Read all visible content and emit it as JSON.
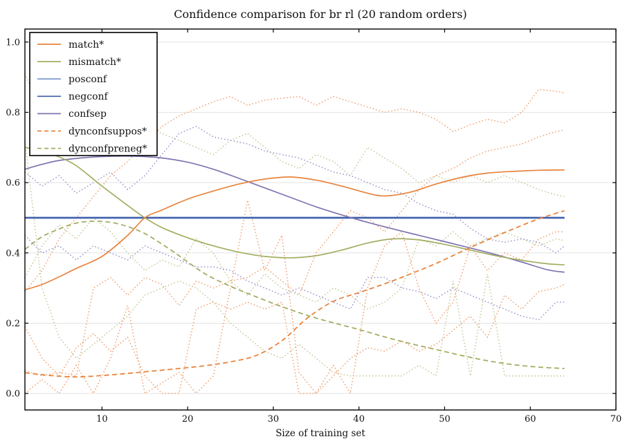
{
  "chart_data": {
    "type": "line",
    "title": "Confidence comparison for br rl (20 random orders)",
    "xlabel": "Size of training set",
    "ylabel": "",
    "xlim": [
      1,
      70
    ],
    "ylim": [
      -0.047,
      1.037
    ],
    "grid": "horizontal",
    "legend_position": "upper left",
    "style": {
      "background": "#ffffff",
      "grid_color": "#e3e3e3",
      "spine_color": "#000000",
      "text_color": "#111111",
      "legend_border": "#000000",
      "legend_fill": "#ffffff"
    },
    "xticks": {
      "values": [
        10,
        20,
        30,
        40,
        50,
        60,
        70
      ],
      "labels": [
        "10",
        "20",
        "30",
        "40",
        "50",
        "60",
        "70"
      ]
    },
    "yticks": {
      "values": [
        0.0,
        0.2,
        0.4,
        0.6,
        0.8,
        1.0
      ],
      "labels": [
        "0.0",
        "0.2",
        "0.4",
        "0.6",
        "0.8",
        "1.0"
      ]
    },
    "legend_order": [
      "match*",
      "mismatch*",
      "posconf",
      "negconf",
      "confsep",
      "dynconfsuppos*",
      "dynconfpreneg*"
    ],
    "series": [
      {
        "name": "run-orange-1",
        "role": "run",
        "color": "#f0a173",
        "dash": "dotted",
        "width": 1.5,
        "smooth": false,
        "x": [
          1,
          3,
          5,
          7,
          9,
          11,
          13,
          15,
          17,
          19,
          21,
          23,
          25,
          27,
          29,
          31,
          33,
          35,
          37,
          39,
          41,
          43,
          45,
          47,
          49,
          51,
          53,
          55,
          57,
          59,
          61,
          63,
          64
        ],
        "y": [
          0.29,
          0.35,
          0.44,
          0.5,
          0.56,
          0.62,
          0.66,
          0.71,
          0.76,
          0.79,
          0.81,
          0.83,
          0.845,
          0.82,
          0.835,
          0.84,
          0.845,
          0.82,
          0.845,
          0.83,
          0.815,
          0.8,
          0.81,
          0.8,
          0.78,
          0.745,
          0.765,
          0.78,
          0.77,
          0.8,
          0.865,
          0.86,
          0.855
        ]
      },
      {
        "name": "run-orange-2",
        "role": "run",
        "color": "#f0a173",
        "dash": "dotted",
        "width": 1.5,
        "smooth": false,
        "x": [
          1,
          3,
          5,
          7,
          9,
          11,
          13,
          15,
          17,
          19,
          21,
          23,
          25,
          27,
          29,
          31,
          33,
          35,
          37,
          39,
          41,
          43,
          45,
          47,
          49,
          51,
          53,
          55,
          57,
          59,
          61,
          63,
          64
        ],
        "y": [
          0.065,
          0.05,
          0.06,
          0.05,
          0.3,
          0.33,
          0.28,
          0.33,
          0.31,
          0.25,
          0.32,
          0.3,
          0.32,
          0.33,
          0.36,
          0.32,
          0.28,
          0.4,
          0.46,
          0.52,
          0.5,
          0.46,
          0.52,
          0.58,
          0.62,
          0.64,
          0.67,
          0.69,
          0.7,
          0.71,
          0.73,
          0.745,
          0.75
        ]
      },
      {
        "name": "run-orange-3",
        "role": "run",
        "color": "#f0a173",
        "dash": "dotted",
        "width": 1.5,
        "smooth": false,
        "x": [
          1,
          3,
          5,
          7,
          9,
          11,
          13,
          15,
          17,
          19,
          21,
          23,
          25,
          27,
          29,
          31,
          33,
          35,
          37,
          39,
          41,
          43,
          45,
          47,
          49,
          51,
          53,
          55,
          57,
          59,
          61,
          63,
          64
        ],
        "y": [
          0.19,
          0.1,
          0.05,
          0.13,
          0.17,
          0.12,
          0.16,
          0.05,
          0.0,
          0.0,
          0.24,
          0.26,
          0.24,
          0.26,
          0.24,
          0.26,
          0.0,
          0.0,
          0.05,
          0.1,
          0.13,
          0.12,
          0.15,
          0.12,
          0.14,
          0.18,
          0.22,
          0.16,
          0.28,
          0.24,
          0.29,
          0.3,
          0.31
        ]
      },
      {
        "name": "run-orange-4",
        "role": "run",
        "color": "#f0a173",
        "dash": "dotted",
        "width": 1.5,
        "smooth": false,
        "x": [
          1,
          3,
          5,
          7,
          9,
          11,
          13,
          15,
          17,
          19,
          21,
          23,
          25,
          27,
          29,
          31,
          33,
          35,
          37,
          39,
          41,
          43,
          45,
          47,
          49,
          51,
          53,
          55,
          57,
          59,
          61,
          63,
          64
        ],
        "y": [
          0.0,
          0.04,
          0.0,
          0.08,
          0.0,
          0.1,
          0.25,
          0.0,
          0.03,
          0.06,
          0.0,
          0.05,
          0.3,
          0.55,
          0.35,
          0.45,
          0.06,
          0.0,
          0.08,
          0.0,
          0.3,
          0.42,
          0.46,
          0.3,
          0.2,
          0.26,
          0.42,
          0.35,
          0.4,
          0.38,
          0.44,
          0.46,
          0.46
        ]
      },
      {
        "name": "run-olive-1",
        "role": "run",
        "color": "#c3c896",
        "dash": "dotted",
        "width": 1.5,
        "smooth": false,
        "x": [
          1,
          3,
          5,
          7,
          9,
          11,
          13,
          15,
          17,
          19,
          21,
          23,
          25,
          27,
          29,
          31,
          33,
          35,
          37,
          39,
          41,
          43,
          45,
          47,
          49,
          51,
          53,
          55,
          57,
          59,
          61,
          63,
          64
        ],
        "y": [
          0.91,
          0.8,
          0.72,
          0.74,
          0.7,
          0.72,
          0.74,
          0.76,
          0.74,
          0.72,
          0.7,
          0.68,
          0.72,
          0.74,
          0.7,
          0.66,
          0.64,
          0.68,
          0.66,
          0.62,
          0.7,
          0.67,
          0.64,
          0.6,
          0.62,
          0.6,
          0.62,
          0.6,
          0.62,
          0.6,
          0.58,
          0.565,
          0.56
        ]
      },
      {
        "name": "run-olive-2",
        "role": "run",
        "color": "#c3c896",
        "dash": "dotted",
        "width": 1.5,
        "smooth": false,
        "x": [
          1,
          3,
          5,
          7,
          9,
          11,
          13,
          15,
          17,
          19,
          21,
          23,
          25,
          27,
          29,
          31,
          33,
          35,
          37,
          39,
          41,
          43,
          45,
          47,
          49,
          51,
          53,
          55,
          57,
          59,
          61,
          63,
          64
        ],
        "y": [
          0.33,
          0.42,
          0.48,
          0.44,
          0.5,
          0.46,
          0.4,
          0.35,
          0.38,
          0.36,
          0.44,
          0.4,
          0.32,
          0.28,
          0.34,
          0.3,
          0.28,
          0.26,
          0.3,
          0.28,
          0.24,
          0.26,
          0.3,
          0.44,
          0.42,
          0.46,
          0.42,
          0.44,
          0.46,
          0.44,
          0.42,
          0.44,
          0.435
        ]
      },
      {
        "name": "run-olive-3",
        "role": "run",
        "color": "#c3c896",
        "dash": "dotted",
        "width": 1.5,
        "smooth": false,
        "x": [
          1,
          3,
          5,
          7,
          9,
          11,
          13,
          15,
          17,
          19,
          21,
          23,
          25,
          27,
          29,
          31,
          33,
          35,
          37,
          39,
          41,
          43,
          45,
          47,
          49,
          51,
          53,
          55,
          57,
          59,
          61,
          63,
          64
        ],
        "y": [
          0.72,
          0.3,
          0.16,
          0.1,
          0.14,
          0.18,
          0.22,
          0.28,
          0.3,
          0.32,
          0.3,
          0.26,
          0.2,
          0.16,
          0.12,
          0.1,
          0.14,
          0.1,
          0.06,
          0.05,
          0.05,
          0.05,
          0.05,
          0.08,
          0.05,
          0.32,
          0.05,
          0.34,
          0.05,
          0.05,
          0.05,
          0.05,
          0.05
        ]
      },
      {
        "name": "run-slate-1",
        "role": "run",
        "color": "#9a95cb",
        "dash": "dotted",
        "width": 1.5,
        "smooth": false,
        "x": [
          1,
          3,
          5,
          7,
          9,
          11,
          13,
          15,
          17,
          19,
          21,
          23,
          25,
          27,
          29,
          31,
          33,
          35,
          37,
          39,
          41,
          43,
          45,
          47,
          49,
          51,
          53,
          55,
          57,
          59,
          61,
          63,
          64
        ],
        "y": [
          0.63,
          0.59,
          0.62,
          0.57,
          0.6,
          0.63,
          0.58,
          0.62,
          0.68,
          0.74,
          0.76,
          0.73,
          0.72,
          0.71,
          0.69,
          0.68,
          0.67,
          0.65,
          0.63,
          0.62,
          0.6,
          0.58,
          0.57,
          0.54,
          0.52,
          0.51,
          0.47,
          0.44,
          0.43,
          0.44,
          0.43,
          0.4,
          0.42
        ]
      },
      {
        "name": "run-slate-2",
        "role": "run",
        "color": "#9a95cb",
        "dash": "dotted",
        "width": 1.5,
        "smooth": false,
        "x": [
          1,
          3,
          5,
          7,
          9,
          11,
          13,
          15,
          17,
          19,
          21,
          23,
          25,
          27,
          29,
          31,
          33,
          35,
          37,
          39,
          41,
          43,
          45,
          47,
          49,
          51,
          53,
          55,
          57,
          59,
          61,
          63,
          64
        ],
        "y": [
          0.45,
          0.4,
          0.42,
          0.38,
          0.42,
          0.4,
          0.38,
          0.42,
          0.4,
          0.38,
          0.36,
          0.36,
          0.35,
          0.32,
          0.3,
          0.28,
          0.3,
          0.28,
          0.26,
          0.24,
          0.33,
          0.33,
          0.3,
          0.29,
          0.27,
          0.3,
          0.28,
          0.26,
          0.24,
          0.22,
          0.21,
          0.26,
          0.26
        ]
      },
      {
        "name": "posconf",
        "role": "main",
        "color": "#7293cb",
        "dash": "solid",
        "width": 3.0,
        "smooth": false,
        "x": [
          1,
          64
        ],
        "y": [
          0.5,
          0.5
        ]
      },
      {
        "name": "negconf",
        "role": "main",
        "color": "#3c5aa6",
        "dash": "solid",
        "width": 1.7,
        "smooth": false,
        "x": [
          1,
          64
        ],
        "y": [
          0.5,
          0.5
        ]
      },
      {
        "name": "run-blue-mid",
        "role": "run",
        "color": "#3c5aa6",
        "dash": "dotted",
        "width": 1.5,
        "smooth": false,
        "x": [
          1,
          64
        ],
        "y": [
          0.5,
          0.5
        ]
      },
      {
        "name": "confsep",
        "role": "main",
        "color": "#7e74b2",
        "dash": "solid",
        "width": 1.7,
        "smooth": true,
        "x": [
          1,
          3,
          5,
          8,
          11,
          14,
          17,
          20,
          23,
          26,
          29,
          32,
          35,
          38,
          41,
          44,
          47,
          50,
          53,
          56,
          59,
          62,
          64
        ],
        "y": [
          0.638,
          0.652,
          0.663,
          0.671,
          0.675,
          0.675,
          0.67,
          0.658,
          0.638,
          0.612,
          0.585,
          0.558,
          0.531,
          0.508,
          0.487,
          0.468,
          0.45,
          0.432,
          0.414,
          0.395,
          0.374,
          0.352,
          0.345
        ]
      },
      {
        "name": "mismatch*",
        "role": "main",
        "color": "#a3ad62",
        "dash": "solid",
        "width": 1.7,
        "smooth": true,
        "x": [
          1,
          3,
          5,
          7,
          10,
          13,
          15,
          17,
          20,
          23,
          26,
          29,
          32,
          35,
          38,
          41,
          44,
          47,
          50,
          53,
          56,
          59,
          62,
          64
        ],
        "y": [
          0.7,
          0.69,
          0.673,
          0.648,
          0.59,
          0.535,
          0.5,
          0.472,
          0.443,
          0.42,
          0.402,
          0.39,
          0.386,
          0.392,
          0.408,
          0.428,
          0.44,
          0.437,
          0.424,
          0.408,
          0.392,
          0.379,
          0.369,
          0.366
        ]
      },
      {
        "name": "match*",
        "role": "main",
        "color": "#e8833c",
        "dash": "solid",
        "width": 1.7,
        "smooth": true,
        "x": [
          1,
          3,
          5,
          7,
          10,
          13,
          15,
          17,
          20,
          23,
          26,
          29,
          32,
          35,
          38,
          41,
          43,
          46,
          49,
          52,
          55,
          58,
          61,
          64
        ],
        "y": [
          0.295,
          0.31,
          0.332,
          0.356,
          0.39,
          0.45,
          0.5,
          0.522,
          0.553,
          0.576,
          0.596,
          0.61,
          0.616,
          0.607,
          0.59,
          0.57,
          0.562,
          0.573,
          0.596,
          0.615,
          0.627,
          0.632,
          0.635,
          0.636
        ]
      },
      {
        "name": "dynconfsuppos*",
        "role": "main",
        "color": "#e8833c",
        "dash": "dashed",
        "width": 1.8,
        "smooth": true,
        "x": [
          1,
          4,
          7,
          10,
          13,
          16,
          19,
          22,
          25,
          28,
          31,
          34,
          37,
          40,
          43,
          46,
          49,
          52,
          55,
          58,
          61,
          64
        ],
        "y": [
          0.059,
          0.051,
          0.047,
          0.051,
          0.057,
          0.064,
          0.071,
          0.079,
          0.09,
          0.108,
          0.15,
          0.215,
          0.262,
          0.287,
          0.312,
          0.34,
          0.37,
          0.404,
          0.437,
          0.468,
          0.497,
          0.52
        ]
      },
      {
        "name": "dynconfpreneg*",
        "role": "main",
        "color": "#a3ad62",
        "dash": "dashed",
        "width": 1.8,
        "smooth": true,
        "x": [
          1,
          3,
          5,
          7,
          9,
          11,
          13,
          15,
          17,
          19,
          22,
          25,
          28,
          31,
          34,
          37,
          40,
          43,
          46,
          49,
          52,
          55,
          58,
          61,
          64
        ],
        "y": [
          0.41,
          0.446,
          0.468,
          0.485,
          0.49,
          0.487,
          0.475,
          0.455,
          0.425,
          0.392,
          0.341,
          0.305,
          0.275,
          0.247,
          0.222,
          0.201,
          0.182,
          0.161,
          0.142,
          0.125,
          0.108,
          0.093,
          0.082,
          0.075,
          0.071
        ]
      }
    ]
  }
}
